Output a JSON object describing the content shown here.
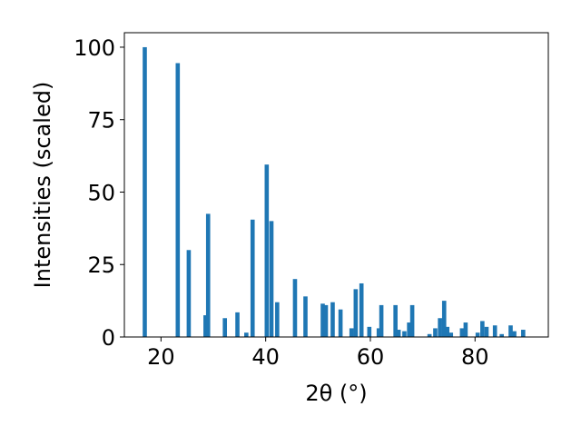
{
  "chart_data": {
    "type": "bar",
    "xlabel": "2θ (°)",
    "ylabel": "Intensities (scaled)",
    "xlim": [
      13,
      94
    ],
    "ylim": [
      0,
      105
    ],
    "grid": false,
    "bar_color": "#1f77b4",
    "bar_width": 0.8,
    "x_ticks": [
      20,
      40,
      60,
      80
    ],
    "y_ticks": [
      0,
      25,
      50,
      75,
      100
    ],
    "x": [
      16.9,
      23.2,
      25.3,
      28.5,
      29.0,
      32.2,
      34.6,
      36.3,
      37.5,
      40.2,
      41.1,
      42.2,
      45.6,
      47.6,
      50.9,
      51.5,
      52.8,
      54.3,
      56.4,
      57.2,
      58.3,
      59.8,
      61.6,
      62.1,
      64.8,
      65.4,
      66.5,
      67.4,
      68.0,
      71.3,
      72.4,
      73.3,
      74.1,
      74.7,
      75.4,
      77.5,
      78.2,
      80.5,
      81.4,
      82.2,
      83.8,
      85.1,
      86.8,
      87.5,
      89.2
    ],
    "values": [
      100,
      94.5,
      30,
      7.5,
      42.5,
      6.5,
      8.5,
      1.5,
      40.5,
      59.5,
      40,
      12,
      20,
      14,
      11.5,
      11,
      12,
      9.5,
      3,
      16.5,
      18.5,
      3.5,
      3,
      11,
      11,
      2.5,
      2,
      5,
      11,
      1,
      3,
      6.5,
      12.5,
      3.5,
      1.5,
      3,
      5,
      1.5,
      5.5,
      3.5,
      4,
      1,
      4,
      2,
      2.5
    ]
  }
}
